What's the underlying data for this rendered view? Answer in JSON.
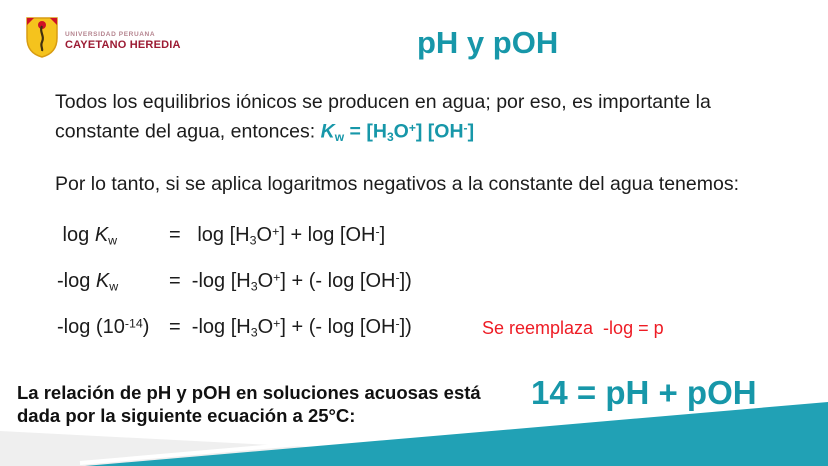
{
  "logo": {
    "line1": "UNIVERSIDAD PERUANA",
    "line2": "CAYETANO HEREDIA"
  },
  "title": "pH y pOH",
  "paragraph1_segments": [
    {
      "t": "Todos los equilibrios iónicos se producen en agua; por eso, es importante la constante del agua, entonces: ",
      "s": "n"
    },
    {
      "t": "K",
      "s": "tbi"
    },
    {
      "t": "w",
      "s": "tbsub"
    },
    {
      "t": " = [H",
      "s": "tb"
    },
    {
      "t": "3",
      "s": "tbsub"
    },
    {
      "t": "O",
      "s": "tb"
    },
    {
      "t": "+",
      "s": "tbsup"
    },
    {
      "t": "] [OH",
      "s": "tb"
    },
    {
      "t": "-",
      "s": "tbsup"
    },
    {
      "t": "]",
      "s": "tb"
    }
  ],
  "paragraph2": "Por lo tanto, si se aplica logaritmos negativos a la constante del agua tenemos:",
  "equations": [
    {
      "lhs": [
        {
          "t": " log ",
          "s": "n"
        },
        {
          "t": "K",
          "s": "i"
        },
        {
          "t": "w",
          "s": "sub"
        }
      ],
      "rhs": [
        {
          "t": "=   log [H",
          "s": "n"
        },
        {
          "t": "3",
          "s": "sub"
        },
        {
          "t": "O",
          "s": "n"
        },
        {
          "t": "+",
          "s": "sup"
        },
        {
          "t": "] + log [OH",
          "s": "n"
        },
        {
          "t": "-",
          "s": "sup"
        },
        {
          "t": "]",
          "s": "n"
        }
      ]
    },
    {
      "lhs": [
        {
          "t": "-log ",
          "s": "n"
        },
        {
          "t": "K",
          "s": "i"
        },
        {
          "t": "w",
          "s": "sub"
        }
      ],
      "rhs": [
        {
          "t": "=  -log [H",
          "s": "n"
        },
        {
          "t": "3",
          "s": "sub"
        },
        {
          "t": "O",
          "s": "n"
        },
        {
          "t": "+",
          "s": "sup"
        },
        {
          "t": "] + (- log [OH",
          "s": "n"
        },
        {
          "t": "-",
          "s": "sup"
        },
        {
          "t": "])",
          "s": "n"
        }
      ]
    },
    {
      "lhs": [
        {
          "t": "-log (10",
          "s": "n"
        },
        {
          "t": "-14",
          "s": "sup"
        },
        {
          "t": ") ",
          "s": "n"
        }
      ],
      "rhs": [
        {
          "t": "=  -log [H",
          "s": "n"
        },
        {
          "t": "3",
          "s": "sub"
        },
        {
          "t": "O",
          "s": "n"
        },
        {
          "t": "+",
          "s": "sup"
        },
        {
          "t": "] + (- log [OH",
          "s": "n"
        },
        {
          "t": "-",
          "s": "sup"
        },
        {
          "t": "])",
          "s": "n"
        }
      ]
    }
  ],
  "note": "Se reemplaza  -log = p",
  "footer": {
    "statement": "La relación de pH y pOH en soluciones acuosas está dada por la siguiente ecuación a 25°C:",
    "equation": "14 = pH + pOH"
  },
  "colors": {
    "teal_accent": "#1797a9",
    "red_note": "#ee1c25",
    "wedge_teal": "#21a1b5",
    "wedge_gray": "#efefef",
    "logo_red": "#9c1b33",
    "shield_yellow": "#f5c31d"
  }
}
